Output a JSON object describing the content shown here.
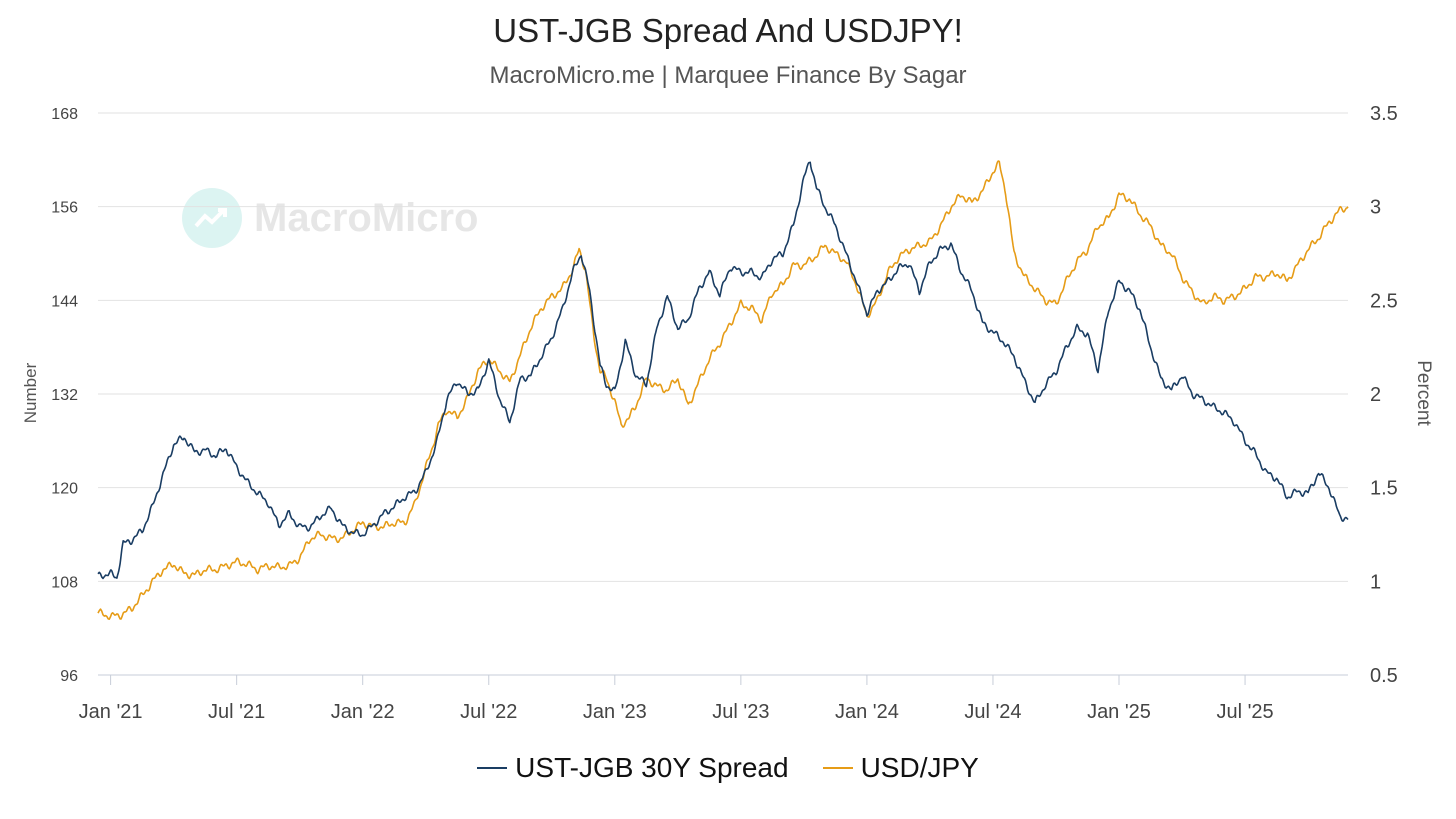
{
  "chart_data": {
    "type": "line",
    "title": "UST-JGB Spread And USDJPY!",
    "subtitle": "MacroMicro.me | Marquee Finance By Sagar",
    "watermark": "MacroMicro",
    "y_left": {
      "label": "Number",
      "ticks": [
        "168",
        "156",
        "144",
        "132",
        "120",
        "108",
        "96"
      ],
      "ylim": [
        96,
        168
      ]
    },
    "y_right": {
      "label": "Percent",
      "ticks": [
        "3.5",
        "3",
        "2.5",
        "2",
        "1.5",
        "1",
        "0.5"
      ],
      "ylim": [
        0.5,
        3.5
      ]
    },
    "x_ticks": [
      "Jan '21",
      "Jul '21",
      "Jan '22",
      "Jul '22",
      "Jan '23",
      "Jul '23",
      "Jan '24",
      "Jul '24",
      "Jan '25",
      "Jul '25"
    ],
    "x_tick_months": [
      0,
      6,
      12,
      18,
      24,
      30,
      36,
      42,
      48,
      54
    ],
    "x_range_months": [
      -0.6,
      58.9
    ],
    "series": [
      {
        "name": "USD/JPY",
        "axis": "left",
        "color": "#e69c17",
        "points": [
          [
            -0.6,
            104.0
          ],
          [
            0.0,
            103.5
          ],
          [
            0.5,
            103.7
          ],
          [
            1.0,
            104.5
          ],
          [
            1.3,
            105.5
          ],
          [
            1.6,
            106.5
          ],
          [
            2.0,
            108.0
          ],
          [
            2.5,
            109.5
          ],
          [
            3.0,
            110.2
          ],
          [
            3.5,
            109.0
          ],
          [
            4.0,
            108.8
          ],
          [
            4.5,
            109.5
          ],
          [
            5.0,
            109.5
          ],
          [
            5.5,
            110.0
          ],
          [
            6.0,
            110.5
          ],
          [
            6.5,
            110.2
          ],
          [
            7.0,
            109.5
          ],
          [
            7.5,
            110.0
          ],
          [
            8.0,
            109.8
          ],
          [
            8.5,
            110.0
          ],
          [
            9.0,
            111.0
          ],
          [
            9.5,
            113.5
          ],
          [
            10.0,
            114.0
          ],
          [
            10.5,
            113.5
          ],
          [
            11.0,
            113.5
          ],
          [
            11.5,
            114.5
          ],
          [
            12.0,
            115.5
          ],
          [
            12.5,
            115.0
          ],
          [
            13.0,
            115.0
          ],
          [
            13.5,
            115.5
          ],
          [
            14.0,
            115.5
          ],
          [
            14.5,
            118.0
          ],
          [
            15.0,
            122.5
          ],
          [
            15.3,
            125.0
          ],
          [
            15.6,
            128.0
          ],
          [
            16.0,
            130.0
          ],
          [
            16.5,
            129.0
          ],
          [
            17.0,
            131.5
          ],
          [
            17.5,
            135.0
          ],
          [
            18.0,
            136.5
          ],
          [
            18.5,
            135.0
          ],
          [
            19.0,
            133.5
          ],
          [
            19.5,
            137.0
          ],
          [
            20.0,
            140.5
          ],
          [
            20.5,
            143.0
          ],
          [
            21.0,
            144.5
          ],
          [
            21.5,
            145.5
          ],
          [
            22.0,
            148.0
          ],
          [
            22.3,
            150.5
          ],
          [
            22.6,
            148.0
          ],
          [
            23.0,
            139.5
          ],
          [
            23.3,
            135.0
          ],
          [
            23.6,
            134.0
          ],
          [
            24.0,
            131.0
          ],
          [
            24.3,
            128.0
          ],
          [
            24.7,
            129.0
          ],
          [
            25.0,
            130.5
          ],
          [
            25.5,
            134.0
          ],
          [
            26.0,
            133.0
          ],
          [
            26.5,
            132.5
          ],
          [
            27.0,
            134.0
          ],
          [
            27.5,
            130.5
          ],
          [
            28.0,
            133.5
          ],
          [
            28.5,
            136.5
          ],
          [
            29.0,
            138.5
          ],
          [
            29.5,
            141.0
          ],
          [
            30.0,
            143.5
          ],
          [
            30.5,
            143.0
          ],
          [
            31.0,
            141.5
          ],
          [
            31.5,
            145.0
          ],
          [
            32.0,
            146.0
          ],
          [
            32.5,
            148.5
          ],
          [
            33.0,
            148.5
          ],
          [
            33.5,
            149.5
          ],
          [
            34.0,
            151.0
          ],
          [
            34.5,
            150.0
          ],
          [
            35.0,
            149.0
          ],
          [
            35.5,
            146.0
          ],
          [
            36.0,
            142.0
          ],
          [
            36.5,
            144.0
          ],
          [
            37.0,
            147.5
          ],
          [
            37.5,
            149.5
          ],
          [
            38.0,
            150.5
          ],
          [
            38.5,
            151.0
          ],
          [
            39.0,
            151.5
          ],
          [
            39.5,
            153.5
          ],
          [
            40.0,
            156.0
          ],
          [
            40.5,
            157.5
          ],
          [
            41.0,
            156.5
          ],
          [
            41.5,
            158.0
          ],
          [
            42.0,
            160.5
          ],
          [
            42.3,
            161.5
          ],
          [
            42.6,
            158.0
          ],
          [
            43.0,
            150.0
          ],
          [
            43.5,
            147.0
          ],
          [
            44.0,
            145.5
          ],
          [
            44.5,
            144.0
          ],
          [
            45.0,
            143.5
          ],
          [
            45.5,
            146.5
          ],
          [
            46.0,
            149.0
          ],
          [
            46.5,
            150.5
          ],
          [
            47.0,
            153.5
          ],
          [
            47.5,
            154.5
          ],
          [
            48.0,
            157.5
          ],
          [
            48.5,
            157.0
          ],
          [
            49.0,
            155.0
          ],
          [
            49.5,
            153.5
          ],
          [
            50.0,
            151.0
          ],
          [
            50.5,
            150.0
          ],
          [
            51.0,
            147.0
          ],
          [
            51.5,
            145.0
          ],
          [
            52.0,
            143.5
          ],
          [
            52.5,
            144.5
          ],
          [
            53.0,
            144.0
          ],
          [
            53.5,
            144.5
          ],
          [
            54.0,
            145.5
          ],
          [
            54.5,
            147.0
          ],
          [
            55.0,
            147.0
          ],
          [
            55.5,
            147.5
          ],
          [
            56.0,
            146.5
          ],
          [
            56.5,
            148.5
          ],
          [
            57.0,
            150.5
          ],
          [
            57.5,
            152.0
          ],
          [
            58.0,
            154.0
          ],
          [
            58.5,
            155.5
          ],
          [
            58.9,
            156.0
          ]
        ]
      },
      {
        "name": "UST-JGB 30Y Spread",
        "axis": "right",
        "color": "#1a3d63",
        "points": [
          [
            -0.6,
            1.03
          ],
          [
            0.0,
            1.04
          ],
          [
            0.3,
            1.02
          ],
          [
            0.6,
            1.2
          ],
          [
            1.0,
            1.22
          ],
          [
            1.5,
            1.27
          ],
          [
            2.0,
            1.4
          ],
          [
            2.5,
            1.57
          ],
          [
            3.0,
            1.73
          ],
          [
            3.5,
            1.77
          ],
          [
            4.0,
            1.69
          ],
          [
            4.5,
            1.7
          ],
          [
            5.0,
            1.67
          ],
          [
            5.5,
            1.71
          ],
          [
            6.0,
            1.61
          ],
          [
            6.5,
            1.53
          ],
          [
            7.0,
            1.47
          ],
          [
            7.5,
            1.42
          ],
          [
            8.0,
            1.3
          ],
          [
            8.5,
            1.36
          ],
          [
            9.0,
            1.29
          ],
          [
            9.5,
            1.29
          ],
          [
            10.0,
            1.35
          ],
          [
            10.5,
            1.39
          ],
          [
            11.0,
            1.3
          ],
          [
            11.5,
            1.26
          ],
          [
            12.0,
            1.25
          ],
          [
            12.5,
            1.3
          ],
          [
            13.0,
            1.36
          ],
          [
            13.5,
            1.4
          ],
          [
            14.0,
            1.45
          ],
          [
            14.5,
            1.48
          ],
          [
            15.0,
            1.58
          ],
          [
            15.5,
            1.73
          ],
          [
            16.0,
            1.97
          ],
          [
            16.5,
            2.07
          ],
          [
            17.0,
            2.0
          ],
          [
            17.5,
            2.02
          ],
          [
            18.0,
            2.18
          ],
          [
            18.5,
            1.98
          ],
          [
            19.0,
            1.85
          ],
          [
            19.5,
            2.08
          ],
          [
            20.0,
            2.1
          ],
          [
            20.5,
            2.2
          ],
          [
            21.0,
            2.3
          ],
          [
            21.5,
            2.45
          ],
          [
            22.0,
            2.65
          ],
          [
            22.4,
            2.75
          ],
          [
            22.8,
            2.55
          ],
          [
            23.3,
            2.15
          ],
          [
            23.6,
            2.05
          ],
          [
            24.0,
            2.01
          ],
          [
            24.5,
            2.28
          ],
          [
            25.0,
            2.1
          ],
          [
            25.5,
            2.05
          ],
          [
            26.0,
            2.35
          ],
          [
            26.5,
            2.52
          ],
          [
            27.0,
            2.35
          ],
          [
            27.5,
            2.4
          ],
          [
            28.0,
            2.56
          ],
          [
            28.5,
            2.65
          ],
          [
            29.0,
            2.53
          ],
          [
            29.5,
            2.68
          ],
          [
            30.0,
            2.65
          ],
          [
            30.5,
            2.65
          ],
          [
            31.0,
            2.62
          ],
          [
            31.5,
            2.72
          ],
          [
            32.0,
            2.75
          ],
          [
            32.5,
            2.9
          ],
          [
            33.0,
            3.15
          ],
          [
            33.3,
            3.25
          ],
          [
            33.6,
            3.1
          ],
          [
            34.0,
            3.0
          ],
          [
            34.5,
            2.9
          ],
          [
            35.0,
            2.75
          ],
          [
            35.5,
            2.6
          ],
          [
            36.0,
            2.43
          ],
          [
            36.5,
            2.55
          ],
          [
            37.0,
            2.6
          ],
          [
            37.5,
            2.67
          ],
          [
            38.0,
            2.7
          ],
          [
            38.5,
            2.55
          ],
          [
            39.0,
            2.7
          ],
          [
            39.5,
            2.77
          ],
          [
            40.0,
            2.8
          ],
          [
            40.5,
            2.65
          ],
          [
            41.0,
            2.55
          ],
          [
            41.5,
            2.38
          ],
          [
            42.0,
            2.33
          ],
          [
            42.5,
            2.28
          ],
          [
            43.0,
            2.2
          ],
          [
            43.5,
            2.07
          ],
          [
            44.0,
            1.95
          ],
          [
            44.5,
            2.05
          ],
          [
            45.0,
            2.12
          ],
          [
            45.5,
            2.25
          ],
          [
            46.0,
            2.35
          ],
          [
            46.5,
            2.32
          ],
          [
            47.0,
            2.13
          ],
          [
            47.5,
            2.45
          ],
          [
            48.0,
            2.6
          ],
          [
            48.5,
            2.55
          ],
          [
            49.0,
            2.45
          ],
          [
            49.5,
            2.25
          ],
          [
            50.0,
            2.08
          ],
          [
            50.5,
            2.02
          ],
          [
            51.0,
            2.1
          ],
          [
            51.5,
            2.0
          ],
          [
            52.0,
            1.97
          ],
          [
            52.5,
            1.93
          ],
          [
            53.0,
            1.9
          ],
          [
            53.5,
            1.85
          ],
          [
            54.0,
            1.75
          ],
          [
            54.5,
            1.68
          ],
          [
            55.0,
            1.58
          ],
          [
            55.5,
            1.55
          ],
          [
            56.0,
            1.45
          ],
          [
            56.5,
            1.48
          ],
          [
            57.0,
            1.47
          ],
          [
            57.5,
            1.58
          ],
          [
            58.0,
            1.5
          ],
          [
            58.5,
            1.35
          ],
          [
            58.9,
            1.33
          ]
        ]
      }
    ],
    "legend": {
      "position": "bottom-center",
      "entries": [
        "UST-JGB 30Y Spread",
        "USD/JPY"
      ]
    },
    "grid": true
  },
  "legend_items": [
    {
      "label": "UST-JGB 30Y Spread",
      "color": "#1a3d63"
    },
    {
      "label": "USD/JPY",
      "color": "#e69c17"
    }
  ]
}
